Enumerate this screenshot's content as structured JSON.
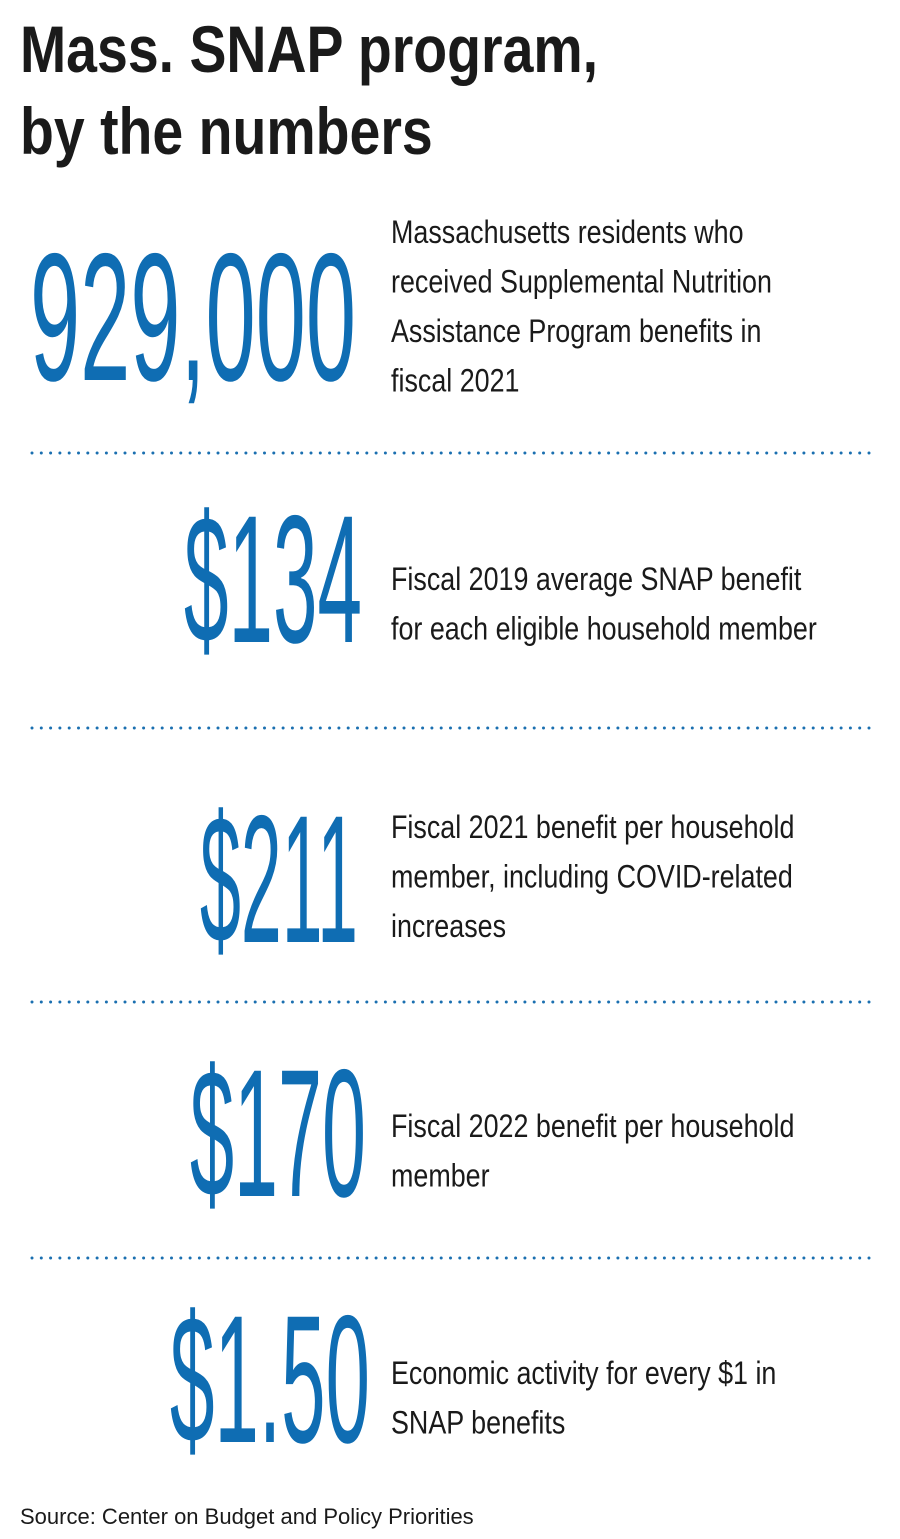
{
  "title": [
    "Mass. SNAP program,",
    "by the numbers"
  ],
  "items": [
    {
      "figure": "929,000",
      "description": [
        "Massachusetts residents who",
        "received Supplemental Nutrition",
        "Assistance Program benefits in",
        "fiscal 2021"
      ]
    },
    {
      "figure": "$134",
      "description": [
        "Fiscal 2019 average SNAP benefit",
        "for each eligible household member"
      ]
    },
    {
      "figure": "$211",
      "description": [
        "Fiscal 2021 benefit per household",
        "member, including COVID-related",
        "increases"
      ]
    },
    {
      "figure": "$170",
      "description": [
        "Fiscal 2022 benefit per household",
        "member"
      ]
    },
    {
      "figure": "$1.50",
      "description": [
        "Economic activity for every $1 in",
        "SNAP benefits"
      ]
    }
  ],
  "source": "Source: Center on Budget and Policy Priorities"
}
